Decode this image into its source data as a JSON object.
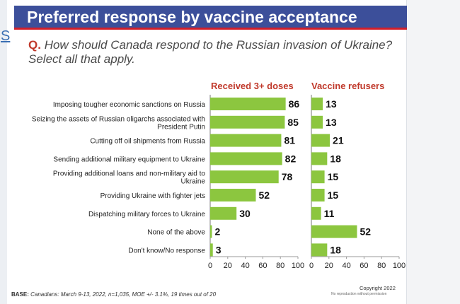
{
  "title": "Preferred response by vaccine acceptance",
  "edge_letter": "S",
  "question": {
    "prefix": "Q.",
    "text": "How should Canada respond to the Russian invasion of Ukraine? Select all that apply."
  },
  "colors": {
    "bar": "#8cc63f",
    "title_bg": "#3c4f9a",
    "accent": "#c0392b"
  },
  "chart_data": {
    "type": "bar",
    "orientation": "horizontal",
    "categories": [
      [
        "Imposing tougher economic sanctions on Russia"
      ],
      [
        "Seizing the assets of Russian oligarchs associated with",
        "President Putin"
      ],
      [
        "Cutting off oil shipments from Russia"
      ],
      [
        "Sending additional military equipment to Ukraine"
      ],
      [
        "Providing additional loans and non-military aid to",
        "Ukraine"
      ],
      [
        "Providing Ukraine with fighter jets"
      ],
      [
        "Dispatching military forces to Ukraine"
      ],
      [
        "None of the above"
      ],
      [
        "Don't know/No response"
      ]
    ],
    "series": [
      {
        "name": "Received 3+ doses",
        "values": [
          86,
          85,
          81,
          82,
          78,
          52,
          30,
          2,
          3
        ]
      },
      {
        "name": "Vaccine refusers",
        "values": [
          13,
          13,
          21,
          18,
          15,
          15,
          11,
          52,
          18
        ]
      }
    ],
    "xlim": [
      0,
      100
    ],
    "xticks": [
      0,
      20,
      40,
      60,
      80,
      100
    ]
  },
  "footer": {
    "base_label": "BASE:",
    "base_text": "Canadians: March 9-13, 2022, n=1,035, MOE +/- 3.1%, 19 times out of 20",
    "copyright": "Copyright 2022",
    "no_repro": "No reproduction without permission"
  }
}
